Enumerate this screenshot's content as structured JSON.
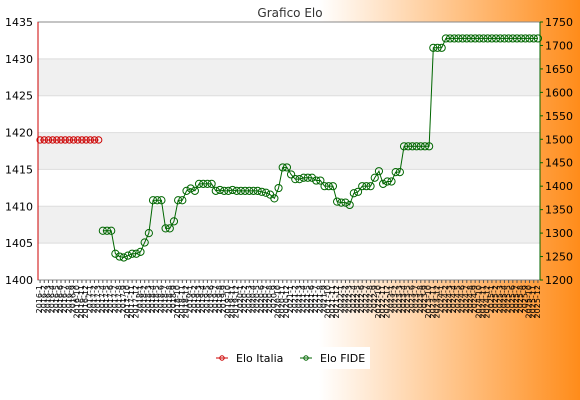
{
  "chart_data": {
    "type": "line",
    "title": "Grafico Elo",
    "background": {
      "left": "#ffffff",
      "right": "#ff8c1a"
    },
    "grid": true,
    "plot_bands": [
      "#ffffff",
      "#f0f0f0"
    ],
    "legend_position": "bottom-center",
    "y_left": {
      "min": 1400,
      "max": 1435,
      "ticks": [
        1400,
        1405,
        1410,
        1415,
        1420,
        1425,
        1430,
        1435
      ],
      "color": "#cc0000"
    },
    "y_right": {
      "min": 1200,
      "max": 1750,
      "ticks": [
        1200,
        1250,
        1300,
        1350,
        1400,
        1450,
        1500,
        1550,
        1600,
        1650,
        1700,
        1750
      ],
      "color": "#006600"
    },
    "x_first_label": "2016-1",
    "x_last_label": "2025-12",
    "n_points": 120,
    "series": [
      {
        "name": "Elo Italia",
        "axis": "left",
        "color": "#cc0000",
        "start_index": 0,
        "values": [
          1419,
          1419,
          1419,
          1419,
          1419,
          1419,
          1419,
          1419,
          1419,
          1419,
          1419,
          1419,
          1419,
          1419,
          1419
        ]
      },
      {
        "name": "Elo FIDE",
        "axis": "right",
        "color": "#006600",
        "start_index": 15,
        "values": [
          1305,
          1305,
          1305,
          1256,
          1250,
          1248,
          1252,
          1256,
          1256,
          1260,
          1280,
          1300,
          1370,
          1370,
          1370,
          1310,
          1310,
          1325,
          1370,
          1370,
          1390,
          1395,
          1390,
          1405,
          1405,
          1405,
          1405,
          1390,
          1392,
          1390,
          1390,
          1392,
          1390,
          1390,
          1390,
          1390,
          1390,
          1390,
          1388,
          1386,
          1382,
          1374,
          1396,
          1440,
          1440,
          1425,
          1415,
          1415,
          1418,
          1418,
          1418,
          1412,
          1412,
          1400,
          1400,
          1400,
          1367,
          1365,
          1365,
          1360,
          1385,
          1388,
          1400,
          1400,
          1400,
          1418,
          1432,
          1405,
          1410,
          1410,
          1430,
          1430,
          1485,
          1485,
          1485,
          1485,
          1485,
          1485,
          1485,
          1695,
          1695,
          1695,
          1715,
          1715,
          1715,
          1715,
          1715,
          1715,
          1715,
          1715,
          1715,
          1715,
          1715,
          1715,
          1715,
          1715,
          1715,
          1715,
          1715,
          1715,
          1715,
          1715,
          1715,
          1715,
          1715
        ]
      }
    ]
  }
}
